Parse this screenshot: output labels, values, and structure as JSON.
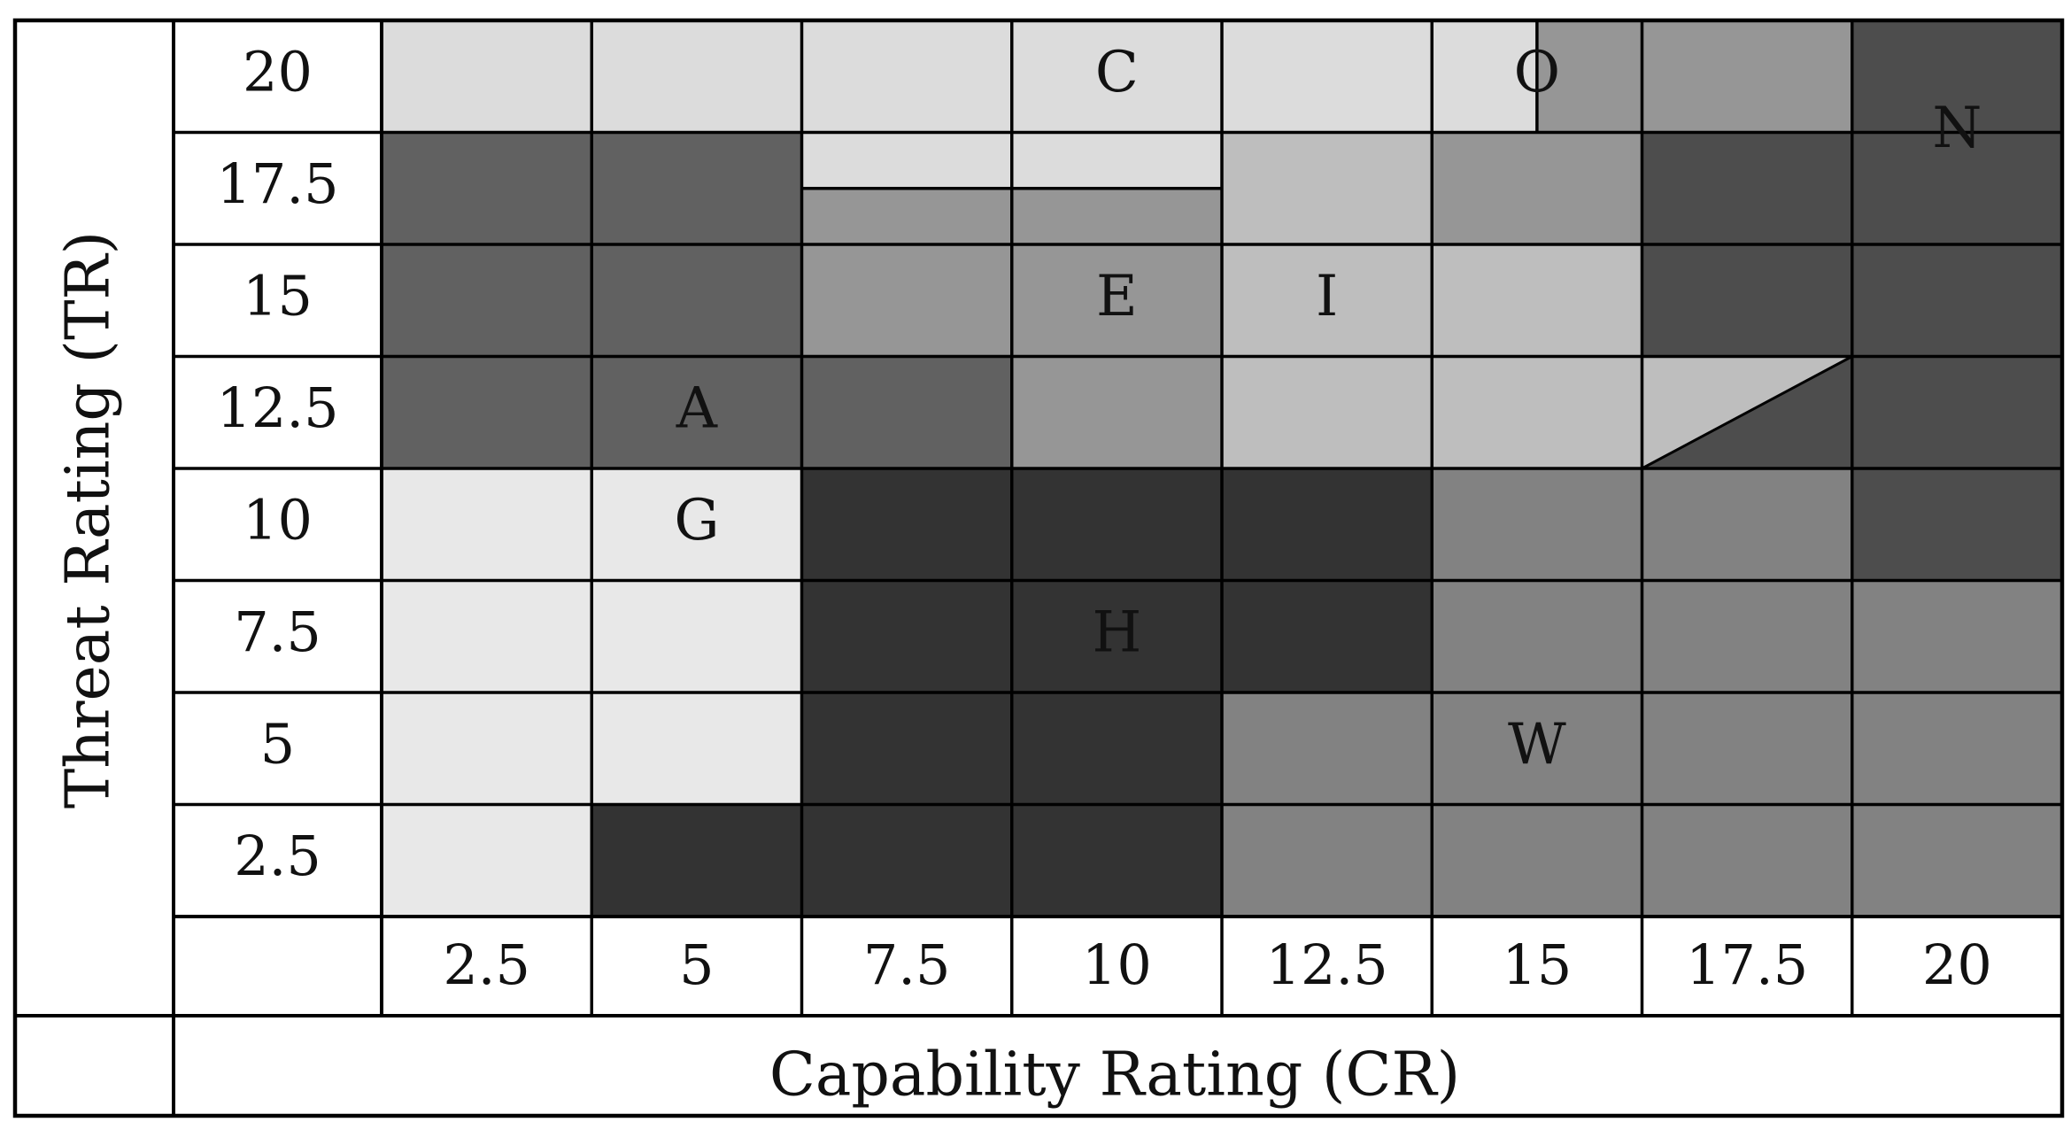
{
  "chart_data": {
    "type": "heatmap",
    "xlabel": "Capability Rating (CR)",
    "ylabel": "Threat Rating (TR)",
    "x_ticks": [
      "2.5",
      "5",
      "7.5",
      "10",
      "12.5",
      "15",
      "17.5",
      "20"
    ],
    "y_ticks": [
      "20",
      "17.5",
      "15",
      "12.5",
      "10",
      "7.5",
      "5",
      "2.5"
    ],
    "colors": {
      "lightest": "#e8e8e8",
      "light": "#dcdcdc",
      "mid_light": "#bebebe",
      "mid": "#969696",
      "mid_dark": "#828282",
      "dark": "#616161",
      "darker": "#4d4d4d",
      "darkest": "#333333",
      "grid": "#000000"
    },
    "regions": [
      {
        "cr": [
          0,
          12.5
        ],
        "tr": [
          17.5,
          20
        ],
        "shade": "light"
      },
      {
        "cr": [
          12.5,
          13.75
        ],
        "tr": [
          17.5,
          20
        ],
        "shade": "light"
      },
      {
        "cr": [
          13.75,
          15
        ],
        "tr": [
          17.5,
          20
        ],
        "shade": "mid"
      },
      {
        "cr": [
          15,
          17.5
        ],
        "tr": [
          17.5,
          20
        ],
        "shade": "mid"
      },
      {
        "cr": [
          17.5,
          20
        ],
        "tr": [
          17.5,
          20
        ],
        "shade": "darker"
      },
      {
        "cr": [
          0,
          5
        ],
        "tr": [
          10,
          17.5
        ],
        "shade": "dark"
      },
      {
        "cr": [
          5,
          10
        ],
        "tr": [
          16.25,
          17.5
        ],
        "shade": "light"
      },
      {
        "cr": [
          5,
          10
        ],
        "tr": [
          12.5,
          16.25
        ],
        "shade": "mid"
      },
      {
        "cr": [
          5,
          7.5
        ],
        "tr": [
          10,
          12.5
        ],
        "shade": "dark"
      },
      {
        "cr": [
          7.5,
          10
        ],
        "tr": [
          10,
          12.5
        ],
        "shade": "mid"
      },
      {
        "cr": [
          10,
          12.5
        ],
        "tr": [
          10,
          17.5
        ],
        "shade": "mid_light"
      },
      {
        "cr": [
          12.5,
          15
        ],
        "tr": [
          15,
          17.5
        ],
        "shade": "mid"
      },
      {
        "cr": [
          12.5,
          15
        ],
        "tr": [
          10,
          15
        ],
        "shade": "mid_light"
      },
      {
        "cr": [
          15,
          20
        ],
        "tr": [
          10,
          17.5
        ],
        "shade": "darker"
      },
      {
        "cr": [
          0,
          5
        ],
        "tr": [
          2.5,
          10
        ],
        "shade": "lightest"
      },
      {
        "cr": [
          0,
          2.5
        ],
        "tr": [
          0,
          2.5
        ],
        "shade": "lightest"
      },
      {
        "cr": [
          2.5,
          5
        ],
        "tr": [
          0,
          2.5
        ],
        "shade": "darkest"
      },
      {
        "cr": [
          5,
          10
        ],
        "tr": [
          0,
          10
        ],
        "shade": "darkest"
      },
      {
        "cr": [
          10,
          12.5
        ],
        "tr": [
          5,
          10
        ],
        "shade": "darkest"
      },
      {
        "cr": [
          10,
          12.5
        ],
        "tr": [
          0,
          5
        ],
        "shade": "mid_dark"
      },
      {
        "cr": [
          12.5,
          17.5
        ],
        "tr": [
          0,
          10
        ],
        "shade": "mid_dark"
      },
      {
        "cr": [
          17.5,
          20
        ],
        "tr": [
          7.5,
          10
        ],
        "shade": "darker"
      },
      {
        "cr": [
          17.5,
          20
        ],
        "tr": [
          0,
          7.5
        ],
        "shade": "mid_dark"
      }
    ],
    "triangle": {
      "points": [
        [
          15,
          12.5
        ],
        [
          17.5,
          12.5
        ],
        [
          15,
          10
        ]
      ],
      "shade": "mid_light"
    },
    "grid_lines": {
      "vertical": [
        {
          "cr": 2.5,
          "tr": [
            0,
            20
          ]
        },
        {
          "cr": 5,
          "tr": [
            0,
            20
          ]
        },
        {
          "cr": 7.5,
          "tr": [
            0,
            20
          ]
        },
        {
          "cr": 10,
          "tr": [
            0,
            20
          ]
        },
        {
          "cr": 12.5,
          "tr": [
            0,
            20
          ]
        },
        {
          "cr": 13.75,
          "tr": [
            17.5,
            20
          ]
        },
        {
          "cr": 15,
          "tr": [
            0,
            20
          ]
        },
        {
          "cr": 17.5,
          "tr": [
            0,
            20
          ]
        }
      ],
      "horizontal": [
        {
          "tr": 17.5,
          "cr": [
            0,
            20
          ]
        },
        {
          "tr": 16.25,
          "cr": [
            5,
            10
          ]
        },
        {
          "tr": 15,
          "cr": [
            0,
            20
          ]
        },
        {
          "tr": 12.5,
          "cr": [
            0,
            20
          ]
        },
        {
          "tr": 10,
          "cr": [
            0,
            20
          ]
        },
        {
          "tr": 7.5,
          "cr": [
            0,
            20
          ]
        },
        {
          "tr": 5,
          "cr": [
            0,
            20
          ]
        },
        {
          "tr": 2.5,
          "cr": [
            0,
            20
          ]
        }
      ]
    },
    "point_labels": [
      {
        "text": "C",
        "cr": 8.75,
        "tr": 18.75
      },
      {
        "text": "O",
        "cr": 13.75,
        "tr": 18.75
      },
      {
        "text": "N",
        "cr": 18.75,
        "tr": 17.5
      },
      {
        "text": "E",
        "cr": 8.75,
        "tr": 13.75
      },
      {
        "text": "I",
        "cr": 11.25,
        "tr": 13.75
      },
      {
        "text": "A",
        "cr": 3.75,
        "tr": 11.25
      },
      {
        "text": "G",
        "cr": 3.75,
        "tr": 8.75
      },
      {
        "text": "H",
        "cr": 8.75,
        "tr": 6.25
      },
      {
        "text": "W",
        "cr": 13.75,
        "tr": 3.75
      }
    ]
  }
}
